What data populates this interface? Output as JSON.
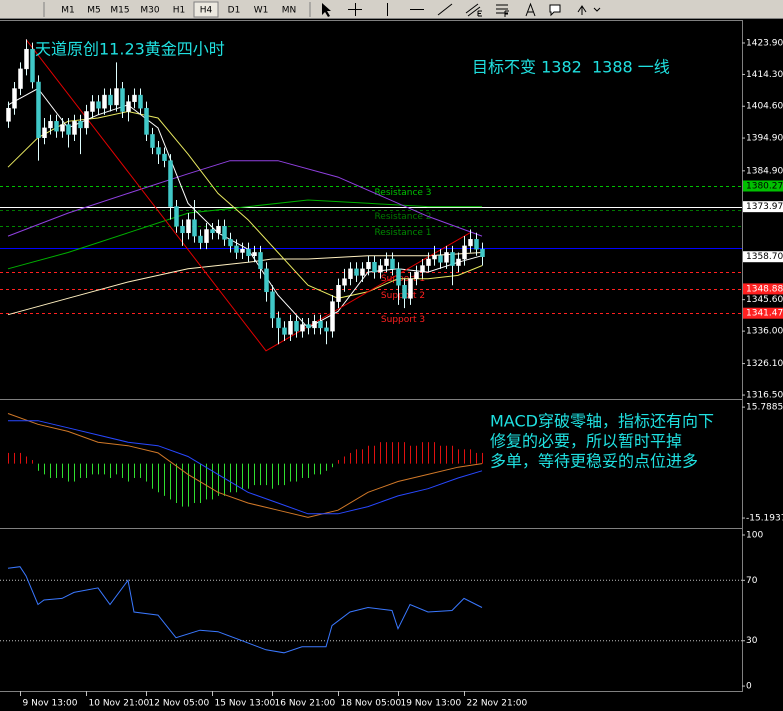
{
  "toolbar": {
    "timeframes": [
      "M1",
      "M5",
      "M15",
      "M30",
      "H1",
      "H4",
      "D1",
      "W1",
      "MN"
    ],
    "active": "H4"
  },
  "chart_data": [
    {
      "type": "candlestick",
      "annotations": [
        "天道原创11.23黄金四小时",
        "目标不变 1382  1388 一线"
      ],
      "xlim": [
        -1.33,
        122.33
      ],
      "ylim": [
        1315.6,
        1430.3
      ],
      "yticks": [
        {
          "value": 1423.9,
          "label": "1423.90"
        },
        {
          "value": 1414.3,
          "label": "1414.30"
        },
        {
          "value": 1404.6,
          "label": "1404.60"
        },
        {
          "value": 1394.9,
          "label": "1394.90"
        },
        {
          "value": 1384.9,
          "label": "1384.90"
        },
        {
          "value": 1345.6,
          "label": "1345.60"
        },
        {
          "value": 1336.0,
          "label": "1336.00"
        },
        {
          "value": 1326.1,
          "label": "1326.10"
        },
        {
          "value": 1316.5,
          "label": "1316.50"
        }
      ],
      "bull_color": "#ffffff",
      "bear_color": "#40c8c8",
      "wick_color": "#e0ffff",
      "x": [
        0,
        1,
        2,
        3,
        4,
        5,
        6,
        7,
        8,
        9,
        10,
        11,
        12,
        13,
        14,
        15,
        16,
        17,
        18,
        19,
        20,
        21,
        22,
        23,
        24,
        25,
        26,
        27,
        28,
        29,
        30,
        31,
        32,
        33,
        34,
        35,
        36,
        37,
        38,
        39,
        40,
        41,
        42,
        43,
        44,
        45,
        46,
        47,
        48,
        49,
        50,
        51,
        52,
        53,
        54,
        55,
        56,
        57,
        58,
        59,
        60,
        61,
        62,
        63,
        64,
        65,
        66,
        67,
        68,
        69,
        70,
        71,
        72,
        73,
        74,
        75,
        76,
        77,
        78,
        79
      ],
      "open": [
        1400,
        1404,
        1410,
        1416,
        1422,
        1412,
        1395,
        1398,
        1400,
        1397,
        1399,
        1396,
        1400,
        1398,
        1403,
        1406,
        1404,
        1408,
        1405,
        1410,
        1403,
        1406,
        1408,
        1404,
        1396,
        1392,
        1390,
        1388,
        1374,
        1368,
        1366,
        1370,
        1365,
        1363,
        1367,
        1366,
        1368,
        1364,
        1362,
        1360,
        1361,
        1359,
        1360,
        1355,
        1348,
        1340,
        1337,
        1335,
        1339,
        1336,
        1338,
        1337,
        1339,
        1337,
        1336,
        1345,
        1350,
        1352,
        1355,
        1353,
        1355,
        1357,
        1354,
        1356,
        1358,
        1355,
        1350,
        1346,
        1352,
        1354,
        1356,
        1358,
        1359,
        1357,
        1360,
        1356,
        1358,
        1362,
        1364,
        1361
      ],
      "high": [
        1406,
        1412,
        1418,
        1425,
        1424,
        1414,
        1401,
        1402,
        1402,
        1401,
        1401,
        1402,
        1402,
        1405,
        1408,
        1408,
        1410,
        1410,
        1418,
        1412,
        1408,
        1410,
        1410,
        1406,
        1398,
        1394,
        1392,
        1390,
        1376,
        1370,
        1372,
        1376,
        1367,
        1369,
        1369,
        1370,
        1370,
        1366,
        1364,
        1363,
        1363,
        1362,
        1362,
        1357,
        1350,
        1342,
        1339,
        1341,
        1341,
        1340,
        1340,
        1341,
        1341,
        1339,
        1347,
        1352,
        1355,
        1357,
        1357,
        1357,
        1359,
        1359,
        1358,
        1360,
        1360,
        1357,
        1352,
        1354,
        1356,
        1358,
        1360,
        1362,
        1361,
        1362,
        1362,
        1360,
        1365,
        1367,
        1366,
        1363
      ],
      "low": [
        1398,
        1402,
        1408,
        1414,
        1410,
        1388,
        1393,
        1396,
        1395,
        1395,
        1392,
        1394,
        1390,
        1396,
        1401,
        1402,
        1402,
        1403,
        1403,
        1401,
        1400,
        1404,
        1402,
        1394,
        1390,
        1387,
        1386,
        1370,
        1366,
        1362,
        1364,
        1363,
        1361,
        1361,
        1364,
        1364,
        1362,
        1360,
        1358,
        1358,
        1357,
        1357,
        1352,
        1345,
        1337,
        1332,
        1333,
        1333,
        1334,
        1334,
        1335,
        1335,
        1335,
        1332,
        1334,
        1343,
        1348,
        1350,
        1351,
        1351,
        1353,
        1352,
        1352,
        1354,
        1353,
        1344,
        1343,
        1344,
        1350,
        1352,
        1354,
        1356,
        1355,
        1355,
        1350,
        1354,
        1356,
        1360,
        1359,
        1356
      ],
      "close": [
        1404,
        1410,
        1416,
        1422,
        1412,
        1395,
        1398,
        1400,
        1397,
        1399,
        1396,
        1400,
        1398,
        1403,
        1406,
        1404,
        1408,
        1405,
        1410,
        1403,
        1406,
        1408,
        1404,
        1396,
        1392,
        1390,
        1388,
        1374,
        1368,
        1366,
        1370,
        1365,
        1363,
        1367,
        1366,
        1368,
        1364,
        1362,
        1360,
        1361,
        1359,
        1360,
        1355,
        1348,
        1340,
        1337,
        1335,
        1339,
        1336,
        1338,
        1337,
        1339,
        1337,
        1336,
        1345,
        1350,
        1352,
        1355,
        1353,
        1355,
        1357,
        1354,
        1356,
        1358,
        1355,
        1350,
        1346,
        1352,
        1354,
        1356,
        1358,
        1359,
        1357,
        1360,
        1356,
        1358,
        1362,
        1364,
        1361,
        1358.7
      ],
      "lines": [
        {
          "color": "#00b000",
          "x": [
            0,
            10,
            20,
            30,
            40,
            50,
            60,
            70,
            79
          ],
          "values": [
            1355,
            1360,
            1366,
            1372,
            1374,
            1376,
            1375,
            1374,
            1374
          ]
        },
        {
          "color": "#9040e0",
          "x": [
            0,
            10,
            20,
            30,
            37,
            45,
            55,
            65,
            70,
            79
          ],
          "values": [
            1365,
            1372,
            1378,
            1384,
            1388,
            1388,
            1383,
            1375,
            1371,
            1365
          ]
        },
        {
          "color": "#fff0c0",
          "x": [
            0,
            10,
            20,
            30,
            40,
            44,
            50,
            60,
            70,
            79
          ],
          "values": [
            1341,
            1346,
            1351,
            1355,
            1357,
            1358,
            1358,
            1359,
            1359,
            1360
          ]
        },
        {
          "color": "#e8e860",
          "x": [
            0,
            5,
            10,
            15,
            20,
            25,
            30,
            35,
            40,
            45,
            50,
            55,
            60,
            65,
            70,
            75,
            79
          ],
          "values": [
            1386,
            1395,
            1400,
            1401,
            1403,
            1401,
            1390,
            1378,
            1370,
            1360,
            1350,
            1346,
            1348,
            1352,
            1352,
            1353,
            1356
          ]
        },
        {
          "color": "#ffffff",
          "x": [
            0,
            5,
            10,
            15,
            20,
            25,
            30,
            35,
            40,
            45,
            50,
            55,
            60,
            65,
            70,
            75,
            79
          ],
          "values": [
            1405,
            1410,
            1398,
            1402,
            1405,
            1398,
            1375,
            1366,
            1361,
            1347,
            1337,
            1342,
            1354,
            1355,
            1354,
            1357,
            1359
          ]
        },
        {
          "color": "#e00000",
          "x": [
            3,
            43,
            77
          ],
          "values": [
            1425,
            1330,
            1366
          ]
        }
      ],
      "levels": [
        {
          "name": "Resistance 3",
          "value": 1380.27,
          "color": "#00c000",
          "dash": true,
          "label": "1380.27"
        },
        {
          "value": 1373.97,
          "color": "#ffffff",
          "dash": false,
          "label": "1373.97"
        },
        {
          "name": "Resistance 2",
          "value": 1372.9,
          "color": "#007800",
          "dash": true
        },
        {
          "name": "Resistance 1",
          "value": 1368.1,
          "color": "#008800",
          "dash": true
        },
        {
          "value": 1361.4,
          "color": "#0000ff",
          "dash": false
        },
        {
          "name": "Support 1",
          "value": 1354.0,
          "color": "#ff2020",
          "dash": true
        },
        {
          "name": "Support 2",
          "value": 1348.88,
          "color": "#ff2020",
          "dash": true,
          "label": "1348.88"
        },
        {
          "name": "Support 3",
          "value": 1341.47,
          "color": "#ff2020",
          "dash": true,
          "label": "1341.47"
        }
      ],
      "last_price": {
        "value": 1358.7,
        "label": "1358.70"
      }
    },
    {
      "type": "macd",
      "annotations": [
        "MACD穿破零轴，指标还有向下",
        "修复的必要，所以暂时平掉",
        "多单，等待更稳妥的点位进多"
      ],
      "xlim": [
        -1.33,
        122.33
      ],
      "ylim": [
        -17.7,
        17.5
      ],
      "yticks": [
        15.7885,
        -15.1937
      ],
      "pos_color": "#e01010",
      "neg_color": "#30e030",
      "x": [
        0,
        1,
        2,
        3,
        4,
        5,
        6,
        7,
        8,
        9,
        10,
        11,
        12,
        13,
        14,
        15,
        16,
        17,
        18,
        19,
        20,
        21,
        22,
        23,
        24,
        25,
        26,
        27,
        28,
        29,
        30,
        31,
        32,
        33,
        34,
        35,
        36,
        37,
        38,
        39,
        40,
        41,
        42,
        43,
        44,
        45,
        46,
        47,
        48,
        49,
        50,
        51,
        52,
        53,
        54,
        55,
        56,
        57,
        58,
        59,
        60,
        61,
        62,
        63,
        64,
        65,
        66,
        67,
        68,
        69,
        70,
        71,
        72,
        73,
        74,
        75,
        76,
        77,
        78,
        79
      ],
      "histogram": [
        3,
        3,
        3,
        2,
        1,
        -2,
        -3,
        -4,
        -4,
        -4,
        -5,
        -5,
        -4,
        -4,
        -3,
        -3,
        -3,
        -4,
        -3,
        -4,
        -5,
        -4,
        -4,
        -5,
        -7,
        -8,
        -9,
        -10,
        -11,
        -12,
        -12,
        -11,
        -11,
        -10,
        -10,
        -9,
        -9,
        -8,
        -8,
        -7,
        -7,
        -6,
        -6,
        -6,
        -7,
        -6,
        -6,
        -5,
        -5,
        -4,
        -4,
        -3,
        -3,
        -2,
        -1,
        1,
        2,
        3,
        4,
        4,
        5,
        5,
        6,
        6,
        6,
        6,
        6,
        5,
        5,
        6,
        6,
        6,
        5,
        5,
        5,
        4,
        4,
        4,
        3,
        3
      ],
      "lines": [
        {
          "color": "#d07828",
          "x": [
            0,
            5,
            10,
            15,
            20,
            25,
            30,
            35,
            40,
            45,
            50,
            55,
            60,
            65,
            70,
            75,
            79
          ],
          "values": [
            14,
            11,
            9,
            6,
            5,
            3,
            -3,
            -8,
            -11,
            -13,
            -15,
            -13,
            -8,
            -5,
            -3,
            -1,
            0
          ]
        },
        {
          "color": "#2848ff",
          "x": [
            0,
            5,
            10,
            15,
            20,
            25,
            30,
            35,
            40,
            45,
            50,
            55,
            60,
            65,
            70,
            75,
            79
          ],
          "values": [
            12,
            12,
            10,
            8,
            6,
            5,
            2,
            -3,
            -8,
            -11,
            -14,
            -14,
            -12,
            -9,
            -7,
            -4,
            -2
          ]
        }
      ]
    },
    {
      "type": "line",
      "xlim": [
        -1.33,
        122.33
      ],
      "ylim": [
        -2.6,
        103.3
      ],
      "yticks": [
        0,
        30,
        70,
        100
      ],
      "hlines": [
        30,
        70
      ],
      "color": "#3a78ff",
      "x": [
        0,
        2,
        3,
        5,
        6,
        9,
        11,
        15,
        17,
        20,
        21,
        25,
        28,
        32,
        35,
        39,
        43,
        46,
        49,
        53,
        54,
        57,
        60,
        64,
        65,
        67,
        70,
        74,
        76,
        79
      ],
      "values": [
        78,
        79,
        73,
        54,
        57,
        58,
        62,
        65,
        54,
        70,
        49,
        47,
        32,
        37,
        36,
        30,
        24,
        22,
        26,
        26,
        40,
        49,
        52,
        50,
        38,
        54,
        49,
        50,
        58,
        52
      ],
      "xticks": [
        {
          "value": 2,
          "label": "9 Nov 13:00"
        },
        {
          "value": 13,
          "label": "10 Nov 21:00"
        },
        {
          "value": 23,
          "label": "12 Nov 05:00"
        },
        {
          "value": 34,
          "label": "15 Nov 13:00"
        },
        {
          "value": 44,
          "label": "16 Nov 21:00"
        },
        {
          "value": 55,
          "label": "18 Nov 05:00"
        },
        {
          "value": 65,
          "label": "19 Nov 13:00"
        },
        {
          "value": 76,
          "label": "22 Nov 21:00"
        }
      ]
    }
  ]
}
